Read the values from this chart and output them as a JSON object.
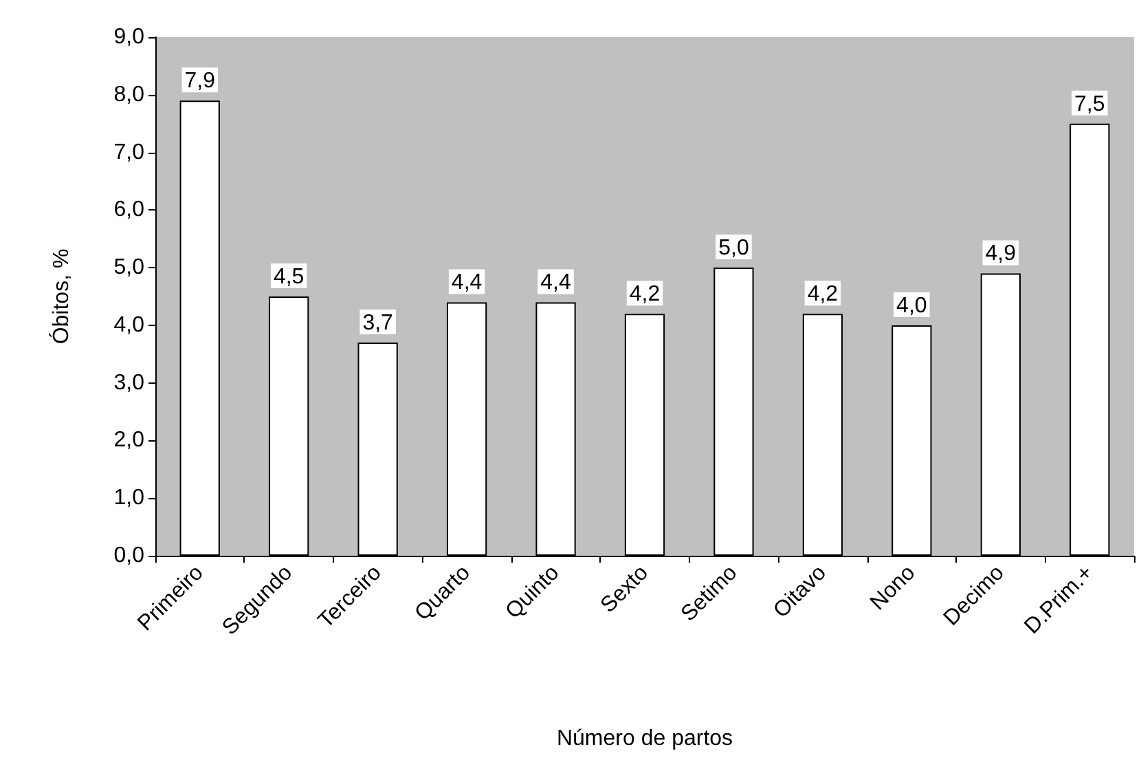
{
  "chart_data": {
    "type": "bar",
    "xlabel": "Número de partos",
    "ylabel": "Óbitos, %",
    "categories": [
      "Primeiro",
      "Segundo",
      "Terceiro",
      "Quarto",
      "Quinto",
      "Sexto",
      "Setimo",
      "Oitavo",
      "Nono",
      "Decimo",
      "D.Prim.+"
    ],
    "values": [
      7.9,
      4.5,
      3.7,
      4.4,
      4.4,
      4.2,
      5.0,
      4.2,
      4.0,
      4.9,
      7.5
    ],
    "value_labels": [
      "7,9",
      "4,5",
      "3,7",
      "4,4",
      "4,4",
      "4,2",
      "5,0",
      "4,2",
      "4,0",
      "4,9",
      "7,5"
    ],
    "color": "#ffffff",
    "ylim": [
      0,
      9
    ],
    "yticks": [
      {
        "value": 0,
        "label": "0,0"
      },
      {
        "value": 1,
        "label": "1,0"
      },
      {
        "value": 2,
        "label": "2,0"
      },
      {
        "value": 3,
        "label": "3,0"
      },
      {
        "value": 4,
        "label": "4,0"
      },
      {
        "value": 5,
        "label": "5,0"
      },
      {
        "value": 6,
        "label": "6,0"
      },
      {
        "value": 7,
        "label": "7,0"
      },
      {
        "value": 8,
        "label": "8,0"
      },
      {
        "value": 9,
        "label": "9,0"
      }
    ],
    "grid": false
  }
}
